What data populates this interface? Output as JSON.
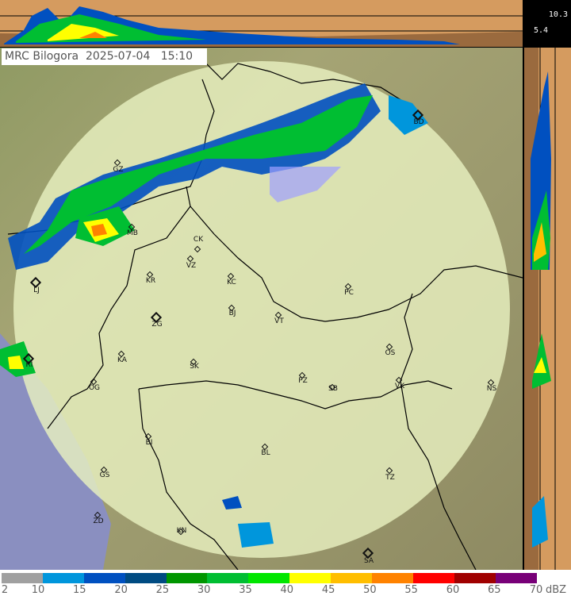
{
  "header": {
    "radar_name": "MRC Bilogora",
    "date": "2025-07-04",
    "time": "15:10"
  },
  "cross_section": {
    "heights_km": [
      "10.3",
      "5.4"
    ]
  },
  "cities": [
    "GZ",
    "MB",
    "CK",
    "VZ",
    "KR",
    "KC",
    "LJ",
    "PC",
    "BJ",
    "ZG",
    "VT",
    "OS",
    "KA",
    "SK",
    "RI",
    "PZ",
    "SB",
    "VK",
    "NS",
    "OG",
    "BI",
    "BL",
    "GS",
    "TZ",
    "ZD",
    "KN",
    "SA",
    "BD"
  ],
  "legend": {
    "ticks": [
      "2",
      "10",
      "15",
      "20",
      "25",
      "30",
      "35",
      "40",
      "45",
      "50",
      "55",
      "60",
      "65",
      "70"
    ],
    "unit": "dBZ",
    "colors": [
      "#a0a0a0",
      "#0096dc",
      "#0050c0",
      "#004b82",
      "#009600",
      "#00be32",
      "#00e600",
      "#ffff00",
      "#ffbe00",
      "#ff8200",
      "#ff0000",
      "#a00000",
      "#780078"
    ]
  },
  "colors": {
    "coverage": "#e8f0c0",
    "terrain": "#9c9a6e",
    "cross_section_bg": "#d59b5f",
    "sea": "#8a8fc0"
  }
}
